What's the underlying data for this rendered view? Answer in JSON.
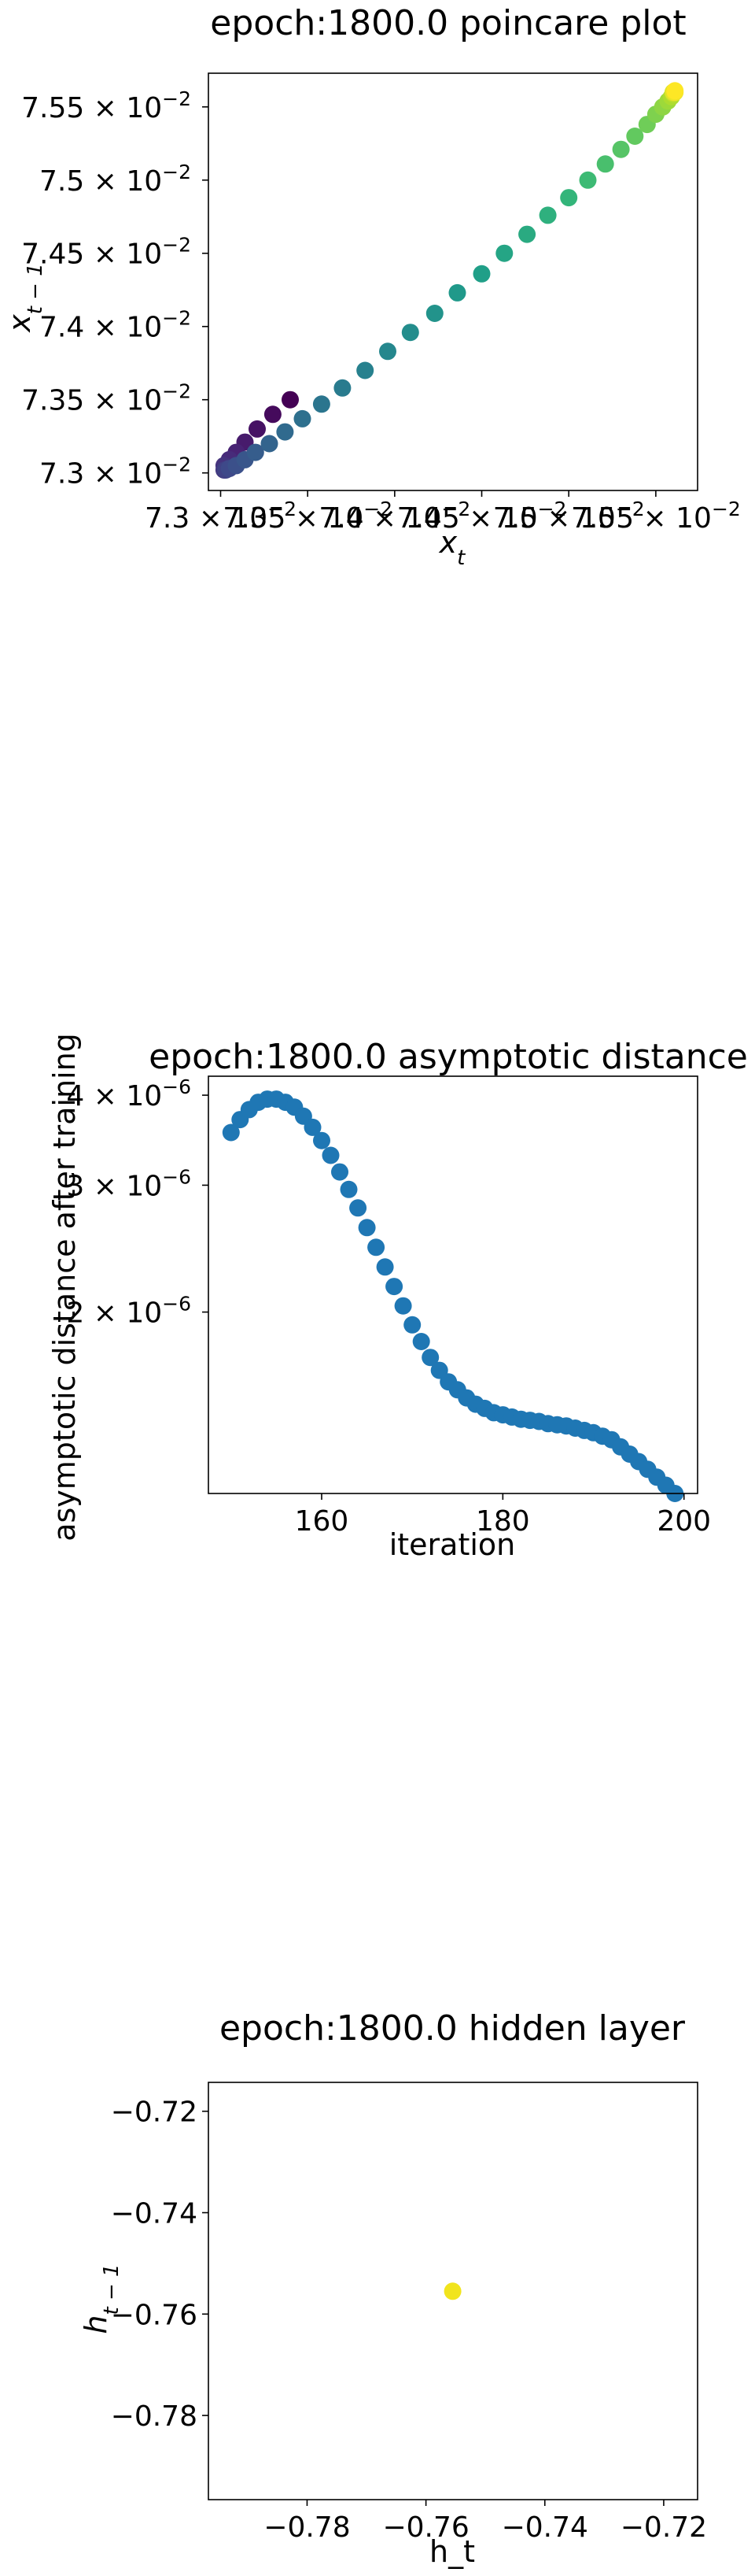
{
  "chart_data": [
    {
      "type": "scatter",
      "title": "epoch:1800.0 poincare plot",
      "xlabel": "x_t",
      "ylabel": "x_{t-1}",
      "color_map": "viridis",
      "xlim": [
        0.07293,
        0.07574
      ],
      "ylim": [
        0.07288,
        0.07573
      ],
      "grid": false,
      "xticks": [
        {
          "value": 0.073,
          "base": "7.3",
          "label": "7.3 × 10",
          "exp": "−2"
        },
        {
          "value": 0.0735,
          "base": "7.35",
          "label": "7.35 × 10",
          "exp": "−2"
        },
        {
          "value": 0.074,
          "base": "7.4",
          "label": "7.4 × 10",
          "exp": "−2"
        },
        {
          "value": 0.0745,
          "base": "7.45",
          "label": "7.45 × 10",
          "exp": "−2"
        },
        {
          "value": 0.075,
          "base": "7.5",
          "label": "7.5 × 10",
          "exp": "−2"
        },
        {
          "value": 0.0755,
          "base": "7.55",
          "label": "7.55 × 10",
          "exp": "−2"
        }
      ],
      "yticks": [
        {
          "value": 0.073,
          "label": "7.3 × 10",
          "exp": "−2"
        },
        {
          "value": 0.0735,
          "label": "7.35 × 10",
          "exp": "−2"
        },
        {
          "value": 0.074,
          "label": "7.4 × 10",
          "exp": "−2"
        },
        {
          "value": 0.0745,
          "label": "7.45 × 10",
          "exp": "−2"
        },
        {
          "value": 0.075,
          "label": "7.5 × 10",
          "exp": "−2"
        },
        {
          "value": 0.0755,
          "label": "7.55 × 10",
          "exp": "−2"
        }
      ],
      "x": [
        0.0734,
        0.0733,
        0.07321,
        0.07314,
        0.07309,
        0.07305,
        0.07302,
        0.07302,
        0.07303,
        0.07305,
        0.07309,
        0.07314,
        0.0732,
        0.07328,
        0.07337,
        0.07347,
        0.07358,
        0.0737,
        0.07383,
        0.07396,
        0.07409,
        0.07423,
        0.07436,
        0.0745,
        0.07463,
        0.07476,
        0.07488,
        0.075,
        0.07511,
        0.07521,
        0.0753,
        0.07538,
        0.07545,
        0.0755,
        0.07554,
        0.07557,
        0.07559,
        0.0756,
        0.0756,
        0.0756,
        0.07561,
        0.07561
      ],
      "y": [
        0.0735,
        0.0734,
        0.0733,
        0.07321,
        0.07314,
        0.07309,
        0.07305,
        0.07302,
        0.07302,
        0.07303,
        0.07305,
        0.07309,
        0.07314,
        0.0732,
        0.07328,
        0.07337,
        0.07347,
        0.07358,
        0.0737,
        0.07383,
        0.07396,
        0.07409,
        0.07423,
        0.07436,
        0.0745,
        0.07463,
        0.07476,
        0.07488,
        0.075,
        0.07511,
        0.07521,
        0.0753,
        0.07538,
        0.07545,
        0.0755,
        0.07554,
        0.07557,
        0.07559,
        0.0756,
        0.0756,
        0.0756,
        0.07561
      ]
    },
    {
      "type": "scatter",
      "title": "epoch:1800.0 asymptotic distance",
      "xlabel": "iteration",
      "ylabel": "asymptotic distance after training",
      "yscale": "log",
      "color": "#1f77b4",
      "xlim": [
        147.5,
        201.5
      ],
      "ylim": [
        1.12e-06,
        4.25e-06
      ],
      "grid": false,
      "xticks": [
        {
          "value": 160,
          "label": "160"
        },
        {
          "value": 180,
          "label": "180"
        },
        {
          "value": 200,
          "label": "200"
        }
      ],
      "yticks": [
        {
          "value": 4e-06,
          "label": "4 × 10",
          "exp": "−6"
        },
        {
          "value": 3e-06,
          "label": "3 × 10",
          "exp": "−6"
        },
        {
          "value": 2e-06,
          "label": "2 × 10",
          "exp": "−6"
        }
      ],
      "x": [
        150,
        151,
        152,
        153,
        154,
        155,
        156,
        157,
        158,
        159,
        160,
        161,
        162,
        163,
        164,
        165,
        166,
        167,
        168,
        169,
        170,
        171,
        172,
        173,
        174,
        175,
        176,
        177,
        178,
        179,
        180,
        181,
        182,
        183,
        184,
        185,
        186,
        187,
        188,
        189,
        190,
        191,
        192,
        193,
        194,
        195,
        196,
        197,
        198,
        199
      ],
      "y": [
        3.55e-06,
        3.7e-06,
        3.82e-06,
        3.91e-06,
        3.95e-06,
        3.95e-06,
        3.91e-06,
        3.85e-06,
        3.74e-06,
        3.61e-06,
        3.46e-06,
        3.3e-06,
        3.13e-06,
        2.96e-06,
        2.79e-06,
        2.62e-06,
        2.46e-06,
        2.31e-06,
        2.17e-06,
        2.04e-06,
        1.92e-06,
        1.82e-06,
        1.73e-06,
        1.66e-06,
        1.6e-06,
        1.56e-06,
        1.52e-06,
        1.49e-06,
        1.47e-06,
        1.45e-06,
        1.44e-06,
        1.43e-06,
        1.42e-06,
        1.415e-06,
        1.41e-06,
        1.4e-06,
        1.395e-06,
        1.39e-06,
        1.38e-06,
        1.37e-06,
        1.36e-06,
        1.345e-06,
        1.33e-06,
        1.3e-06,
        1.27e-06,
        1.24e-06,
        1.21e-06,
        1.18e-06,
        1.15e-06,
        1.12e-06
      ]
    },
    {
      "type": "scatter",
      "title": "epoch:1800.0 hidden layer",
      "xlabel": "h_t",
      "ylabel": "h_{t-1}",
      "color": "#f1e41d",
      "xlim": [
        -0.7966,
        -0.7143
      ],
      "ylim": [
        -0.7966,
        -0.7143
      ],
      "grid": false,
      "xticks": [
        {
          "value": -0.78,
          "label": "−0.78"
        },
        {
          "value": -0.76,
          "label": "−0.76"
        },
        {
          "value": -0.74,
          "label": "−0.74"
        },
        {
          "value": -0.72,
          "label": "−0.72"
        }
      ],
      "yticks": [
        {
          "value": -0.72,
          "label": "−0.72"
        },
        {
          "value": -0.74,
          "label": "−0.74"
        },
        {
          "value": -0.76,
          "label": "−0.76"
        },
        {
          "value": -0.78,
          "label": "−0.78"
        }
      ],
      "x": [
        -0.7555
      ],
      "y": [
        -0.7555
      ]
    }
  ]
}
